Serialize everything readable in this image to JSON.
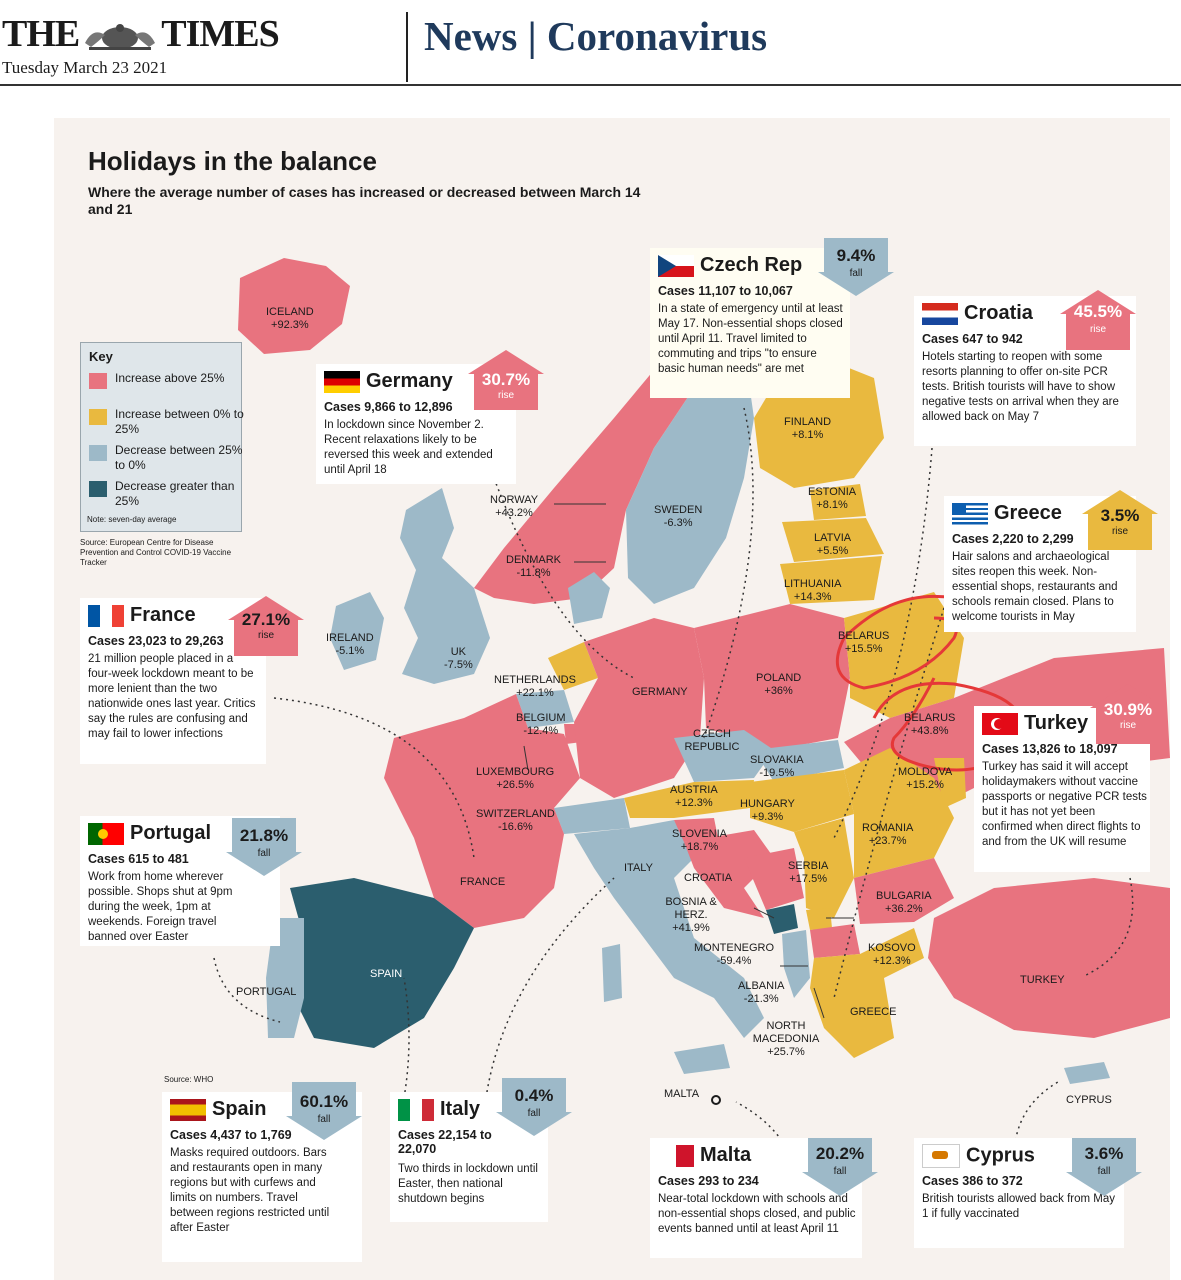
{
  "masthead": {
    "logo_left": "THE",
    "logo_right": "TIMES",
    "date": "Tuesday March 23 2021",
    "section": "News | Coronavirus"
  },
  "infographic": {
    "title": "Holidays in the balance",
    "subtitle": "Where the average number of cases has increased or decreased between March 14 and 21",
    "key": {
      "title": "Key",
      "items": [
        {
          "label": "Increase above 25%",
          "color": "#e8737f"
        },
        {
          "label": "Increase between 0% to 25%",
          "color": "#e9b93f"
        },
        {
          "label": "Decrease between 25% to 0%",
          "color": "#9db9c8"
        },
        {
          "label": "Decrease greater than 25%",
          "color": "#2b5e6e"
        }
      ],
      "note": "Note: seven-day average"
    },
    "source_ecdc": "Source: European Centre for Disease Prevention and Control COVID-19 Vaccine Tracker",
    "source_who": "Source: WHO"
  },
  "boxes": {
    "czech": {
      "name": "Czech Rep",
      "pct": "9.4%",
      "dir": "fall",
      "cases": "Cases 11,107 to 10,067",
      "text": "In a state of emergency until at least May 17. Non-essential shops closed until April 11. Travel limited to commuting and trips \"to ensure basic human needs\" are met"
    },
    "croatia": {
      "name": "Croatia",
      "pct": "45.5%",
      "dir": "rise",
      "cases": "Cases 647 to 942",
      "text": "Hotels starting to reopen with some resorts planning to offer on-site PCR tests. British tourists will have to show negative tests on arrival when they are allowed back on May 7"
    },
    "germany": {
      "name": "Germany",
      "pct": "30.7%",
      "dir": "rise",
      "cases": "Cases 9,866 to 12,896",
      "text": "In lockdown since November 2. Recent relaxations likely to be reversed this week and extended until April 18"
    },
    "greece": {
      "name": "Greece",
      "pct": "3.5%",
      "dir": "rise",
      "cases": "Cases 2,220 to 2,299",
      "text": "Hair salons and archaeological sites reopen this week. Non-essential shops, restaurants and schools remain closed. Plans to welcome tourists in May"
    },
    "france": {
      "name": "France",
      "pct": "27.1%",
      "dir": "rise",
      "cases": "Cases 23,023 to 29,263",
      "text": "21 million people placed in a four-week lockdown meant to be more lenient than the two nationwide ones last year. Critics say the rules are confusing and may fail to lower infections"
    },
    "turkey": {
      "name": "Turkey",
      "pct": "30.9%",
      "dir": "rise",
      "cases": "Cases 13,826 to 18,097",
      "text": "Turkey has said it will accept holidaymakers without vaccine passports or negative PCR tests but it has not yet been confirmed when direct flights to and from the UK will resume"
    },
    "portugal": {
      "name": "Portugal",
      "pct": "21.8%",
      "dir": "fall",
      "cases": "Cases 615 to 481",
      "text": "Work from home wherever possible. Shops shut at 9pm during the week, 1pm at weekends. Foreign travel banned over Easter"
    },
    "spain": {
      "name": "Spain",
      "pct": "60.1%",
      "dir": "fall",
      "cases": "Cases 4,437 to 1,769",
      "text": "Masks required outdoors. Bars and restaurants open in many regions but with curfews and limits on numbers. Travel between regions restricted until after Easter"
    },
    "italy": {
      "name": "Italy",
      "pct": "0.4%",
      "dir": "fall",
      "cases": "Cases 22,154 to 22,070",
      "text": "Two thirds in lockdown until Easter, then national shutdown begins"
    },
    "malta": {
      "name": "Malta",
      "pct": "20.2%",
      "dir": "fall",
      "cases": "Cases 293 to 234",
      "text": "Near-total lockdown with schools and non-essential shops closed, and public events banned until at least April 11"
    },
    "cyprus": {
      "name": "Cyprus",
      "pct": "3.6%",
      "dir": "fall",
      "cases": "Cases 386 to 372",
      "text": "British tourists allowed back from May 1 if fully vaccinated"
    }
  },
  "map_labels": {
    "iceland": {
      "name": "ICELAND",
      "pct": "+92.3%"
    },
    "norway": {
      "name": "NORWAY",
      "pct": "+43.2%"
    },
    "sweden": {
      "name": "SWEDEN",
      "pct": "-6.3%"
    },
    "finland": {
      "name": "FINLAND",
      "pct": "+8.1%"
    },
    "estonia": {
      "name": "ESTONIA",
      "pct": "+8.1%"
    },
    "latvia": {
      "name": "LATVIA",
      "pct": "+5.5%"
    },
    "lithuania": {
      "name": "LITHUANIA",
      "pct": "+14.3%"
    },
    "denmark": {
      "name": "DENMARK",
      "pct": "-11.8%"
    },
    "ireland": {
      "name": "IRELAND",
      "pct": "-5.1%"
    },
    "uk": {
      "name": "UK",
      "pct": "-7.5%"
    },
    "netherlands": {
      "name": "NETHERLANDS",
      "pct": "+22.1%"
    },
    "belgium": {
      "name": "BELGIUM",
      "pct": "-12.4%"
    },
    "luxembourg": {
      "name": "LUXEMBOURG",
      "pct": "+26.5%"
    },
    "germany": {
      "name": "GERMANY"
    },
    "poland": {
      "name": "POLAND",
      "pct": "+36%"
    },
    "belarus1": {
      "name": "BELARUS",
      "pct": "+15.5%"
    },
    "belarus2": {
      "name": "BELARUS",
      "pct": "+43.8%"
    },
    "czech": {
      "name": "CZECH REPUBLIC"
    },
    "slovakia": {
      "name": "SLOVAKIA",
      "pct": "-19.5%"
    },
    "moldova": {
      "name": "MOLDOVA",
      "pct": "+15.2%"
    },
    "austria": {
      "name": "AUSTRIA",
      "pct": "+12.3%"
    },
    "hungary": {
      "name": "HUNGARY",
      "pct": "+9.3%"
    },
    "switzerland": {
      "name": "SWITZERLAND",
      "pct": "-16.6%"
    },
    "slovenia": {
      "name": "SLOVENIA",
      "pct": "+18.7%"
    },
    "romania": {
      "name": "ROMANIA",
      "pct": "+23.7%"
    },
    "france": {
      "name": "FRANCE"
    },
    "italy": {
      "name": "ITALY"
    },
    "croatia": {
      "name": "CROATIA"
    },
    "serbia": {
      "name": "SERBIA",
      "pct": "+17.5%"
    },
    "bosnia": {
      "name": "BOSNIA & HERZ.",
      "pct": "+41.9%"
    },
    "bulgaria": {
      "name": "BULGARIA",
      "pct": "+36.2%"
    },
    "montenegro": {
      "name": "MONTENEGRO",
      "pct": "-59.4%"
    },
    "kosovo": {
      "name": "KOSOVO",
      "pct": "+12.3%"
    },
    "albania": {
      "name": "ALBANIA",
      "pct": "-21.3%"
    },
    "north_macedonia": {
      "name": "NORTH MACEDONIA",
      "pct": "+25.7%"
    },
    "greece": {
      "name": "GREECE"
    },
    "turkey": {
      "name": "TURKEY"
    },
    "portugal": {
      "name": "PORTUGAL"
    },
    "spain": {
      "name": "SPAIN"
    },
    "malta": {
      "name": "MALTA"
    },
    "cyprus": {
      "name": "CYPRUS"
    }
  }
}
